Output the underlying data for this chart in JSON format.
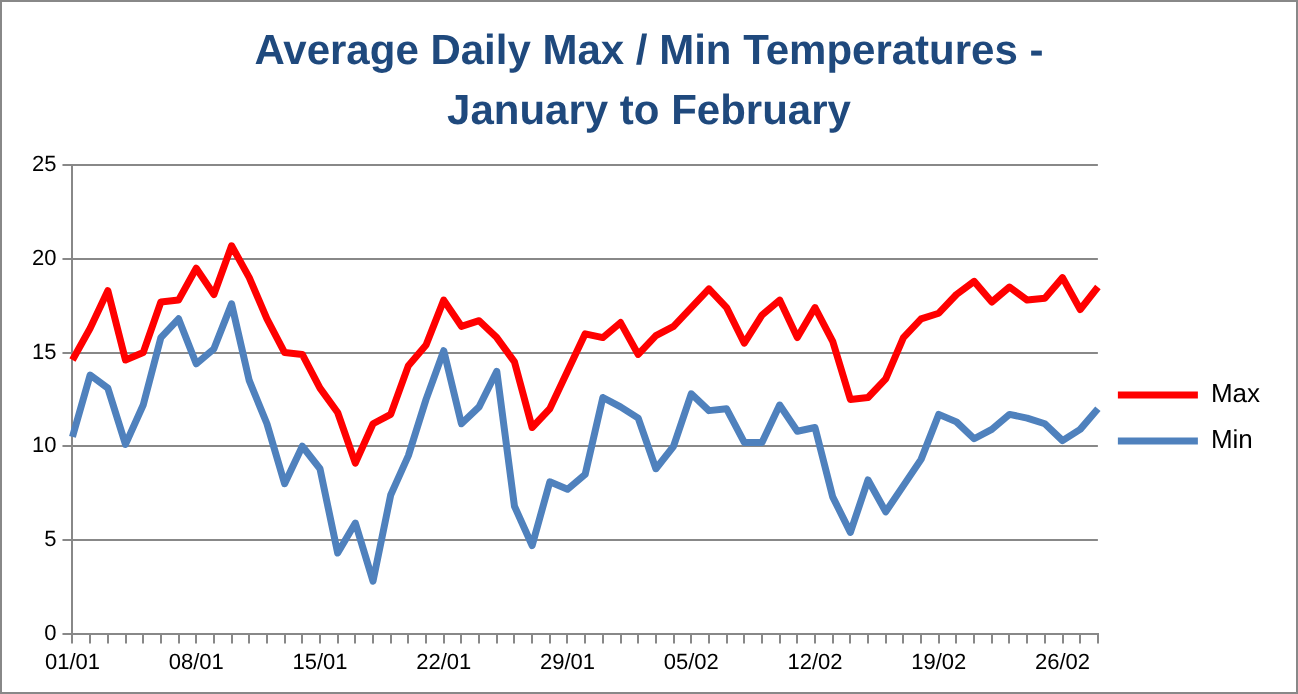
{
  "chart_data": {
    "type": "line",
    "title": "Average Daily Max / Min Temperatures - January to February",
    "categories": [
      "01/01",
      null,
      null,
      null,
      null,
      null,
      null,
      "08/01",
      null,
      null,
      null,
      null,
      null,
      null,
      "15/01",
      null,
      null,
      null,
      null,
      null,
      null,
      "22/01",
      null,
      null,
      null,
      null,
      null,
      null,
      "29/01",
      null,
      null,
      null,
      null,
      null,
      null,
      "05/02",
      null,
      null,
      null,
      null,
      null,
      null,
      "12/02",
      null,
      null,
      null,
      null,
      null,
      null,
      "19/02",
      null,
      null,
      null,
      null,
      null,
      null,
      "26/02",
      null,
      null
    ],
    "series": [
      {
        "name": "Max",
        "color": "#ff0000",
        "values": [
          14.6,
          16.3,
          18.3,
          14.6,
          15.0,
          17.7,
          17.8,
          19.5,
          18.1,
          20.7,
          19.0,
          16.8,
          15.0,
          14.9,
          13.1,
          11.8,
          9.1,
          11.2,
          11.7,
          14.3,
          15.4,
          17.8,
          16.4,
          16.7,
          15.8,
          14.5,
          11.0,
          12.0,
          14.0,
          16.0,
          15.8,
          16.6,
          14.9,
          15.9,
          16.4,
          17.4,
          18.4,
          17.4,
          15.5,
          17.0,
          17.8,
          15.8,
          17.4,
          15.6,
          12.5,
          12.6,
          13.6,
          15.8,
          16.8,
          17.1,
          18.1,
          18.8,
          17.7,
          18.5,
          17.8,
          17.9,
          19.0,
          17.3,
          18.5
        ]
      },
      {
        "name": "Min",
        "color": "#4f81bd",
        "values": [
          10.5,
          13.8,
          13.1,
          10.1,
          12.2,
          15.8,
          16.8,
          14.4,
          15.2,
          17.6,
          13.5,
          11.2,
          8.0,
          10.0,
          8.8,
          4.3,
          5.9,
          2.8,
          7.4,
          9.5,
          12.5,
          15.1,
          11.2,
          12.1,
          14.0,
          6.8,
          4.7,
          8.1,
          7.7,
          8.5,
          12.6,
          12.1,
          11.5,
          8.8,
          10.0,
          12.8,
          11.9,
          12.0,
          10.2,
          10.2,
          12.2,
          10.8,
          11.0,
          7.3,
          5.4,
          8.2,
          6.5,
          7.9,
          9.3,
          11.7,
          11.3,
          10.4,
          10.9,
          11.7,
          11.5,
          11.2,
          10.3,
          10.9,
          12.0
        ]
      }
    ],
    "ylim": [
      0,
      25
    ],
    "yticks": [
      0,
      5,
      10,
      15,
      20,
      25
    ],
    "grid": "y",
    "legend": "right",
    "marker": "none",
    "line_style": "solid"
  }
}
